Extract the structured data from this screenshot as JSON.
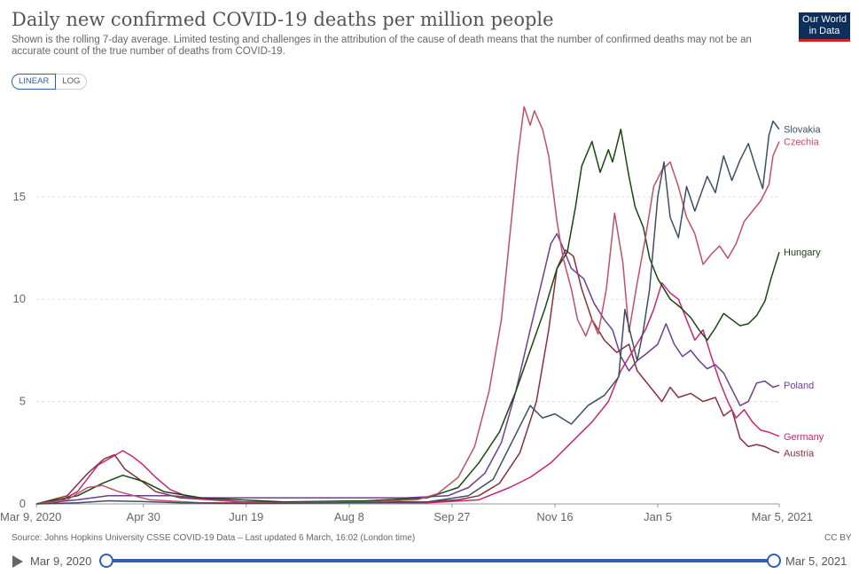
{
  "header": {
    "title": "Daily new confirmed COVID-19 deaths per million people",
    "subtitle": "Shown is the rolling 7-day average. Limited testing and challenges in the attribution of the cause of death means that the number of confirmed deaths may not be an accurate count of the true number of deaths from COVID-19.",
    "logo_line1": "Our World",
    "logo_line2": "in Data"
  },
  "scale_toggle": {
    "linear_label": "LINEAR",
    "log_label": "LOG",
    "selected": "LINEAR"
  },
  "footer": {
    "source": "Source: Johns Hopkins University CSSE COVID-19 Data – Last updated 6 March, 16:02 (London time)",
    "license": "CC BY"
  },
  "timeline": {
    "start_label": "Mar 9, 2020",
    "end_label": "Mar 5, 2021"
  },
  "colors": {
    "Slovakia": "#3c4e66",
    "Czechia": "#c15065",
    "Hungary": "#18470f",
    "Poland": "#6d3e91",
    "Germany": "#c7247a",
    "Austria": "#883039"
  },
  "chart_data": {
    "type": "line",
    "title": "Daily new confirmed COVID-19 deaths per million people",
    "xlabel": "",
    "ylabel": "",
    "x_unit": "days since Mar 9, 2020",
    "xlim": [
      0,
      361
    ],
    "ylim": [
      0,
      19.5
    ],
    "y_ticks": [
      0,
      5,
      10,
      15
    ],
    "x_ticks": [
      {
        "day": 0,
        "label": "Mar 9, 2020"
      },
      {
        "day": 52,
        "label": "Apr 30"
      },
      {
        "day": 102,
        "label": "Jun 19"
      },
      {
        "day": 152,
        "label": "Aug 8"
      },
      {
        "day": 202,
        "label": "Sep 27"
      },
      {
        "day": 252,
        "label": "Nov 16"
      },
      {
        "day": 302,
        "label": "Jan 5"
      },
      {
        "day": 361,
        "label": "Mar 5, 2021"
      }
    ],
    "series": [
      {
        "name": "Slovakia",
        "color": "#3c4e66",
        "points": [
          [
            0,
            0
          ],
          [
            20,
            0.05
          ],
          [
            35,
            0.15
          ],
          [
            50,
            0.12
          ],
          [
            70,
            0.05
          ],
          [
            100,
            0.02
          ],
          [
            150,
            0.05
          ],
          [
            190,
            0.1
          ],
          [
            210,
            0.4
          ],
          [
            222,
            1.2
          ],
          [
            232,
            3.2
          ],
          [
            240,
            4.8
          ],
          [
            246,
            4.2
          ],
          [
            252,
            4.4
          ],
          [
            260,
            3.9
          ],
          [
            268,
            4.8
          ],
          [
            276,
            5.3
          ],
          [
            283,
            6.2
          ],
          [
            286,
            9.5
          ],
          [
            289,
            8.2
          ],
          [
            292,
            7.0
          ],
          [
            295,
            8.5
          ],
          [
            298,
            10.5
          ],
          [
            302,
            15.0
          ],
          [
            305,
            16.7
          ],
          [
            308,
            14.0
          ],
          [
            312,
            13.0
          ],
          [
            316,
            15.5
          ],
          [
            320,
            14.3
          ],
          [
            326,
            16.0
          ],
          [
            330,
            15.2
          ],
          [
            334,
            17.0
          ],
          [
            338,
            15.8
          ],
          [
            342,
            16.8
          ],
          [
            346,
            17.6
          ],
          [
            350,
            16.3
          ],
          [
            353,
            15.4
          ],
          [
            356,
            18.0
          ],
          [
            358,
            18.7
          ],
          [
            361,
            18.3
          ]
        ]
      },
      {
        "name": "Czechia",
        "color": "#c15065",
        "points": [
          [
            0,
            0
          ],
          [
            15,
            0.2
          ],
          [
            25,
            0.8
          ],
          [
            32,
            0.9
          ],
          [
            40,
            0.6
          ],
          [
            55,
            0.2
          ],
          [
            80,
            0.05
          ],
          [
            120,
            0.05
          ],
          [
            160,
            0.1
          ],
          [
            185,
            0.2
          ],
          [
            195,
            0.5
          ],
          [
            205,
            1.3
          ],
          [
            213,
            2.8
          ],
          [
            220,
            5.5
          ],
          [
            226,
            9.0
          ],
          [
            230,
            13.0
          ],
          [
            234,
            17.0
          ],
          [
            237,
            19.4
          ],
          [
            240,
            18.5
          ],
          [
            242,
            19.2
          ],
          [
            246,
            18.3
          ],
          [
            249,
            17.0
          ],
          [
            253,
            13.8
          ],
          [
            256,
            12.0
          ],
          [
            260,
            10.5
          ],
          [
            263,
            9.0
          ],
          [
            267,
            8.2
          ],
          [
            270,
            9.0
          ],
          [
            273,
            8.3
          ],
          [
            277,
            10.5
          ],
          [
            281,
            14.2
          ],
          [
            285,
            11.8
          ],
          [
            288,
            8.4
          ],
          [
            292,
            10.8
          ],
          [
            296,
            13.0
          ],
          [
            300,
            15.5
          ],
          [
            304,
            16.3
          ],
          [
            308,
            16.7
          ],
          [
            312,
            15.5
          ],
          [
            316,
            14.0
          ],
          [
            320,
            13.2
          ],
          [
            324,
            11.7
          ],
          [
            328,
            12.2
          ],
          [
            332,
            12.6
          ],
          [
            336,
            12.0
          ],
          [
            340,
            12.7
          ],
          [
            344,
            13.8
          ],
          [
            348,
            14.3
          ],
          [
            352,
            14.8
          ],
          [
            356,
            15.6
          ],
          [
            358,
            17.0
          ],
          [
            361,
            17.7
          ]
        ]
      },
      {
        "name": "Hungary",
        "color": "#18470f",
        "points": [
          [
            0,
            0
          ],
          [
            20,
            0.4
          ],
          [
            32,
            1.0
          ],
          [
            42,
            1.4
          ],
          [
            52,
            1.1
          ],
          [
            62,
            0.6
          ],
          [
            80,
            0.3
          ],
          [
            120,
            0.1
          ],
          [
            160,
            0.15
          ],
          [
            190,
            0.3
          ],
          [
            205,
            0.8
          ],
          [
            215,
            2.0
          ],
          [
            225,
            3.5
          ],
          [
            233,
            5.5
          ],
          [
            240,
            7.5
          ],
          [
            247,
            9.5
          ],
          [
            253,
            11.5
          ],
          [
            258,
            12.3
          ],
          [
            262,
            14.5
          ],
          [
            265,
            16.5
          ],
          [
            270,
            17.7
          ],
          [
            274,
            16.2
          ],
          [
            278,
            17.3
          ],
          [
            280,
            16.7
          ],
          [
            284,
            18.3
          ],
          [
            288,
            16.0
          ],
          [
            291,
            14.5
          ],
          [
            295,
            13.5
          ],
          [
            298,
            12.0
          ],
          [
            302,
            11.0
          ],
          [
            308,
            10.0
          ],
          [
            313,
            9.6
          ],
          [
            318,
            9.1
          ],
          [
            322,
            8.5
          ],
          [
            326,
            8.0
          ],
          [
            330,
            8.6
          ],
          [
            334,
            9.3
          ],
          [
            338,
            9.0
          ],
          [
            342,
            8.7
          ],
          [
            346,
            8.8
          ],
          [
            350,
            9.2
          ],
          [
            354,
            9.9
          ],
          [
            357,
            11.0
          ],
          [
            361,
            12.3
          ]
        ]
      },
      {
        "name": "Poland",
        "color": "#6d3e91",
        "points": [
          [
            0,
            0
          ],
          [
            20,
            0.2
          ],
          [
            35,
            0.4
          ],
          [
            50,
            0.4
          ],
          [
            65,
            0.4
          ],
          [
            80,
            0.3
          ],
          [
            100,
            0.3
          ],
          [
            140,
            0.3
          ],
          [
            180,
            0.3
          ],
          [
            200,
            0.4
          ],
          [
            210,
            0.8
          ],
          [
            218,
            1.5
          ],
          [
            226,
            3.0
          ],
          [
            233,
            5.5
          ],
          [
            240,
            8.5
          ],
          [
            246,
            11.0
          ],
          [
            250,
            12.7
          ],
          [
            253,
            13.2
          ],
          [
            256,
            12.5
          ],
          [
            260,
            11.5
          ],
          [
            266,
            11.0
          ],
          [
            271,
            9.8
          ],
          [
            276,
            9.0
          ],
          [
            280,
            8.5
          ],
          [
            284,
            7.2
          ],
          [
            288,
            6.5
          ],
          [
            292,
            7.0
          ],
          [
            296,
            7.3
          ],
          [
            302,
            7.8
          ],
          [
            306,
            8.8
          ],
          [
            310,
            7.8
          ],
          [
            314,
            7.2
          ],
          [
            318,
            7.5
          ],
          [
            322,
            7.0
          ],
          [
            326,
            6.6
          ],
          [
            330,
            6.8
          ],
          [
            334,
            6.4
          ],
          [
            338,
            5.6
          ],
          [
            342,
            4.8
          ],
          [
            346,
            5.0
          ],
          [
            350,
            5.9
          ],
          [
            354,
            6.0
          ],
          [
            358,
            5.7
          ],
          [
            361,
            5.8
          ]
        ]
      },
      {
        "name": "Germany",
        "color": "#c7247a",
        "points": [
          [
            0,
            0
          ],
          [
            10,
            0.05
          ],
          [
            20,
            0.6
          ],
          [
            30,
            1.9
          ],
          [
            37,
            2.3
          ],
          [
            42,
            2.6
          ],
          [
            47,
            2.3
          ],
          [
            52,
            1.9
          ],
          [
            58,
            1.3
          ],
          [
            65,
            0.7
          ],
          [
            75,
            0.3
          ],
          [
            100,
            0.1
          ],
          [
            150,
            0.05
          ],
          [
            190,
            0.05
          ],
          [
            215,
            0.2
          ],
          [
            230,
            0.8
          ],
          [
            240,
            1.3
          ],
          [
            250,
            2.0
          ],
          [
            260,
            3.0
          ],
          [
            270,
            4.0
          ],
          [
            278,
            5.0
          ],
          [
            284,
            6.5
          ],
          [
            290,
            7.5
          ],
          [
            296,
            8.5
          ],
          [
            300,
            9.5
          ],
          [
            304,
            10.8
          ],
          [
            308,
            10.3
          ],
          [
            312,
            10.0
          ],
          [
            316,
            9.0
          ],
          [
            320,
            8.0
          ],
          [
            324,
            8.5
          ],
          [
            328,
            7.2
          ],
          [
            332,
            6.0
          ],
          [
            336,
            5.0
          ],
          [
            340,
            4.2
          ],
          [
            344,
            4.6
          ],
          [
            348,
            4.0
          ],
          [
            352,
            3.6
          ],
          [
            356,
            3.5
          ],
          [
            361,
            3.3
          ]
        ]
      },
      {
        "name": "Austria",
        "color": "#883039",
        "points": [
          [
            0,
            0
          ],
          [
            15,
            0.4
          ],
          [
            25,
            1.5
          ],
          [
            33,
            2.2
          ],
          [
            38,
            2.4
          ],
          [
            43,
            1.7
          ],
          [
            50,
            1.2
          ],
          [
            58,
            0.6
          ],
          [
            70,
            0.3
          ],
          [
            100,
            0.1
          ],
          [
            150,
            0.1
          ],
          [
            190,
            0.1
          ],
          [
            205,
            0.2
          ],
          [
            215,
            0.4
          ],
          [
            225,
            1.0
          ],
          [
            235,
            2.5
          ],
          [
            243,
            5.0
          ],
          [
            249,
            8.5
          ],
          [
            253,
            11.5
          ],
          [
            257,
            12.4
          ],
          [
            261,
            12.1
          ],
          [
            265,
            10.5
          ],
          [
            270,
            9.0
          ],
          [
            276,
            8.0
          ],
          [
            282,
            7.4
          ],
          [
            288,
            7.8
          ],
          [
            292,
            6.5
          ],
          [
            296,
            6.0
          ],
          [
            300,
            5.5
          ],
          [
            304,
            5.0
          ],
          [
            308,
            5.7
          ],
          [
            312,
            5.2
          ],
          [
            318,
            5.4
          ],
          [
            324,
            5.0
          ],
          [
            330,
            5.2
          ],
          [
            334,
            4.3
          ],
          [
            338,
            4.6
          ],
          [
            342,
            3.2
          ],
          [
            346,
            2.8
          ],
          [
            350,
            2.9
          ],
          [
            354,
            2.8
          ],
          [
            358,
            2.6
          ],
          [
            361,
            2.5
          ]
        ]
      }
    ]
  }
}
